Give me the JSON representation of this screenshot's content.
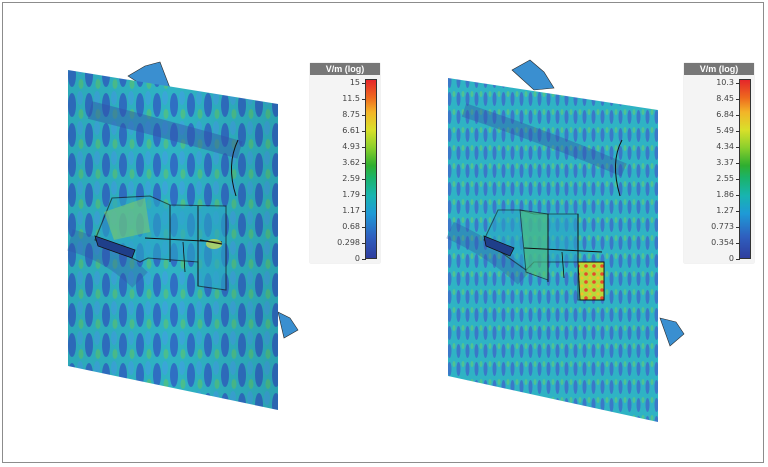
{
  "panels": [
    {
      "legend": {
        "title": "V/m (log)",
        "ticks": [
          "15",
          "11.5",
          "8.75",
          "6.61",
          "4.93",
          "3.62",
          "2.59",
          "1.79",
          "1.17",
          "0.68",
          "0.298",
          "0"
        ]
      }
    },
    {
      "legend": {
        "title": "V/m (log)",
        "ticks": [
          "10.3",
          "8.45",
          "6.84",
          "5.49",
          "4.34",
          "3.37",
          "2.55",
          "1.86",
          "1.27",
          "0.773",
          "0.354",
          "0"
        ]
      }
    }
  ]
}
